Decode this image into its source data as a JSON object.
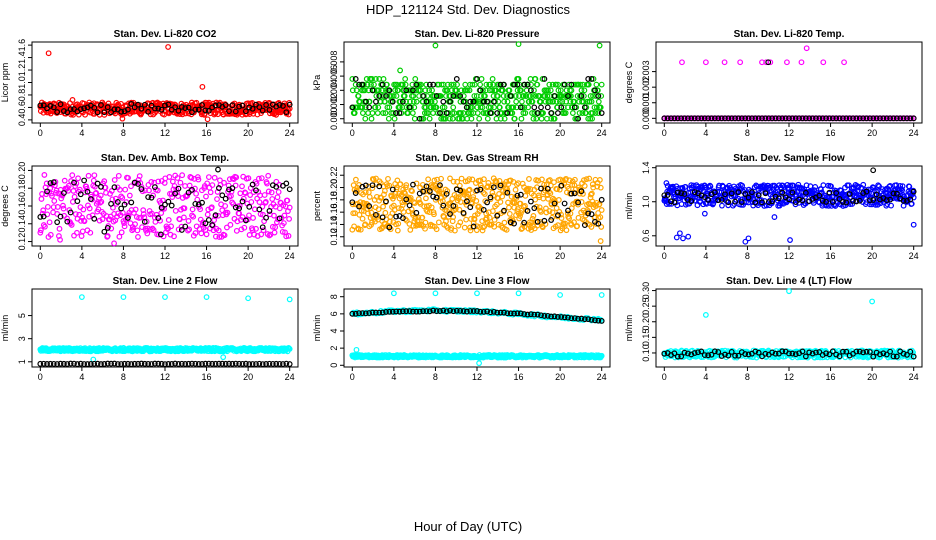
{
  "figure": {
    "title": "HDP_121124  Std. Dev. Diagnostics",
    "xlabel": "Hour of Day (UTC)"
  },
  "chart_data": [
    {
      "type": "scatter",
      "title": "Stan. Dev. Li-820 CO2",
      "ylabel": "Licor ppm",
      "xlim": [
        -0.8,
        24.8
      ],
      "ylim": [
        0.35,
        1.65
      ],
      "xticks": [
        "0",
        "4",
        "8",
        "12",
        "16",
        "20",
        "24"
      ],
      "yticks": [
        "0.4",
        "0.6",
        "0.8",
        "1.0",
        "1.2",
        "1.4",
        "1.6"
      ],
      "colors": {
        "main": "#ff0000",
        "overlay": "#000000"
      },
      "series": [
        {
          "color": "#ff0000",
          "band": [
            0.48,
            0.68
          ],
          "n": 480,
          "outliers": [
            [
              0.8,
              1.47
            ],
            [
              12.3,
              1.57
            ],
            [
              15.6,
              0.93
            ],
            [
              16.1,
              0.41
            ],
            [
              7.9,
              0.42
            ],
            [
              3.1,
              0.72
            ]
          ]
        },
        {
          "color": "#000000",
          "band": [
            0.52,
            0.66
          ],
          "n": 75
        }
      ]
    },
    {
      "type": "scatter",
      "title": "Stan. Dev. Li-820 Pressure",
      "ylabel": "kPa",
      "xlim": [
        -0.8,
        24.8
      ],
      "ylim": [
        -0.0006,
        0.0108
      ],
      "xticks": [
        "0",
        "4",
        "8",
        "12",
        "16",
        "20",
        "24"
      ],
      "yticks": [
        "0.000",
        "0.002",
        "0.004",
        "0.006",
        "0.008"
      ],
      "colors": {
        "main": "#00cc00",
        "overlay": "#000000"
      },
      "series": [
        {
          "color": "#00cc00",
          "band": [
            0.0,
            0.0055
          ],
          "n": 520,
          "quantize": 0.0008,
          "outliers": [
            [
              8,
              0.0103
            ],
            [
              16,
              0.0105
            ],
            [
              23.8,
              0.0103
            ],
            [
              4.6,
              0.0068
            ]
          ]
        },
        {
          "color": "#000000",
          "band": [
            0.0,
            0.0055
          ],
          "n": 75,
          "quantize": 0.0008
        }
      ]
    },
    {
      "type": "scatter",
      "title": "Stan. Dev. Li-820 Temp.",
      "ylabel": "degrees C",
      "xlim": [
        -0.8,
        24.8
      ],
      "ylim": [
        -0.0003,
        0.0049
      ],
      "xticks": [
        "0",
        "4",
        "8",
        "12",
        "16",
        "20",
        "24"
      ],
      "yticks": [
        "0.000",
        "0.001",
        "0.002",
        "0.003"
      ],
      "colors": {
        "main": "#ff00ff",
        "overlay": "#000000"
      },
      "series": [
        {
          "color": "#ff00ff",
          "band": [
            0.0,
            0.0
          ],
          "n": 130,
          "outliers": [
            [
              0,
              0
            ],
            [
              1.7,
              0.0036
            ],
            [
              4,
              0.0036
            ],
            [
              5.8,
              0.0036
            ],
            [
              7.3,
              0.0036
            ],
            [
              9.4,
              0.0036
            ],
            [
              9.8,
              0.0036
            ],
            [
              10.2,
              0.0036
            ],
            [
              11.8,
              0.0036
            ],
            [
              13.2,
              0.0036
            ],
            [
              13.7,
              0.0045
            ],
            [
              15.3,
              0.0036
            ],
            [
              17.3,
              0.0036
            ],
            [
              10.3,
              0.0
            ]
          ]
        },
        {
          "color": "#000000",
          "band": [
            0.0,
            0.0
          ],
          "n": 75,
          "outliers": [
            [
              10,
              0.0036
            ]
          ]
        }
      ]
    },
    {
      "type": "scatter",
      "title": "Stan. Dev. Amb. Box Temp.",
      "ylabel": "degrees C",
      "xlim": [
        -0.8,
        24.8
      ],
      "ylim": [
        0.115,
        0.205
      ],
      "xticks": [
        "0",
        "4",
        "8",
        "12",
        "16",
        "20",
        "24"
      ],
      "yticks": [
        "0.12",
        "0.14",
        "0.16",
        "0.18",
        "0.20"
      ],
      "colors": {
        "main": "#ff00ff",
        "overlay": "#000000"
      },
      "series": [
        {
          "color": "#ff00ff",
          "band": [
            0.125,
            0.195
          ],
          "n": 430,
          "outliers": [
            [
              1.9,
              0.122
            ],
            [
              7.1,
              0.118
            ]
          ]
        },
        {
          "color": "#000000",
          "band": [
            0.13,
            0.19
          ],
          "n": 75,
          "outliers": [
            [
              17.1,
              0.201
            ],
            [
              11.6,
              0.128
            ]
          ]
        }
      ]
    },
    {
      "type": "scatter",
      "title": "Stan. Dev. Gas Stream RH",
      "ylabel": "percent",
      "xlim": [
        -0.8,
        24.8
      ],
      "ylim": [
        0.105,
        0.235
      ],
      "xticks": [
        "0",
        "4",
        "8",
        "12",
        "16",
        "20",
        "24"
      ],
      "yticks": [
        "0.12",
        "0.14",
        "0.16",
        "0.18",
        "0.20",
        "0.22"
      ],
      "colors": {
        "main": "#ffa500",
        "overlay": "#000000"
      },
      "series": [
        {
          "color": "#ffa500",
          "band": [
            0.13,
            0.215
          ],
          "n": 560,
          "outliers": [
            [
              23.9,
              0.113
            ]
          ]
        },
        {
          "color": "#000000",
          "band": [
            0.135,
            0.205
          ],
          "n": 75
        }
      ]
    },
    {
      "type": "scatter",
      "title": "Stan. Dev. Sample Flow",
      "ylabel": "ml/min",
      "xlim": [
        -0.8,
        24.8
      ],
      "ylim": [
        0.48,
        1.42
      ],
      "xticks": [
        "0",
        "4",
        "8",
        "12",
        "16",
        "20",
        "24"
      ],
      "yticks": [
        "0.6",
        "1.0",
        "1.4"
      ],
      "colors": {
        "main": "#0000ff",
        "overlay": "#000000"
      },
      "series": [
        {
          "color": "#0000ff",
          "band": [
            0.95,
            1.2
          ],
          "n": 520,
          "outliers": [
            [
              1.2,
              0.58
            ],
            [
              1.5,
              0.63
            ],
            [
              1.8,
              0.57
            ],
            [
              2.3,
              0.59
            ],
            [
              7.8,
              0.53
            ],
            [
              8.1,
              0.57
            ],
            [
              12.1,
              0.55
            ],
            [
              0.2,
              1.22
            ],
            [
              24,
              0.73
            ],
            [
              10.6,
              0.82
            ],
            [
              3.9,
              0.86
            ]
          ]
        },
        {
          "color": "#000000",
          "band": [
            0.99,
            1.12
          ],
          "n": 75,
          "outliers": [
            [
              20.1,
              1.37
            ]
          ]
        }
      ]
    },
    {
      "type": "scatter",
      "title": "Stan. Dev. Line 2 Flow",
      "ylabel": "ml/min",
      "xlim": [
        -0.8,
        24.8
      ],
      "ylim": [
        0.55,
        7.3
      ],
      "xticks": [
        "0",
        "4",
        "8",
        "12",
        "16",
        "20",
        "24"
      ],
      "yticks": [
        "1",
        "3",
        "5"
      ],
      "colors": {
        "main": "#00ffff",
        "overlay": "#000000"
      },
      "series": [
        {
          "color": "#00ffff",
          "band": [
            1.9,
            2.2
          ],
          "n": 480,
          "outliers": [
            [
              4,
              6.6
            ],
            [
              8,
              6.6
            ],
            [
              12,
              6.6
            ],
            [
              16,
              6.6
            ],
            [
              20,
              6.5
            ],
            [
              24,
              6.4
            ],
            [
              5.1,
              1.2
            ],
            [
              17.6,
              1.4
            ]
          ]
        },
        {
          "color": "#000000",
          "band": [
            0.8,
            0.85
          ],
          "n": 75
        }
      ]
    },
    {
      "type": "scatter",
      "title": "Stan. Dev. Line 3 Flow",
      "ylabel": "ml/min",
      "xlim": [
        -0.8,
        24.8
      ],
      "ylim": [
        -0.2,
        8.9
      ],
      "xticks": [
        "0",
        "4",
        "8",
        "12",
        "16",
        "20",
        "24"
      ],
      "yticks": [
        "0",
        "2",
        "4",
        "6",
        "8"
      ],
      "colors": {
        "main": "#00ffff",
        "overlay": "#000000"
      },
      "series": [
        {
          "color": "#00ffff",
          "band": [
            0.9,
            1.2
          ],
          "n": 460,
          "outliers": [
            [
              4,
              8.4
            ],
            [
              8,
              8.4
            ],
            [
              12,
              8.4
            ],
            [
              16,
              8.4
            ],
            [
              20,
              8.2
            ],
            [
              24,
              8.2
            ],
            [
              0.4,
              1.8
            ],
            [
              12.2,
              0.25
            ]
          ]
        },
        {
          "color": "#00ffff",
          "curve": [
            [
              0,
              6.0
            ],
            [
              4,
              6.3
            ],
            [
              8,
              6.4
            ],
            [
              12,
              6.3
            ],
            [
              16,
              6.0
            ],
            [
              20,
              5.6
            ],
            [
              24,
              5.3
            ]
          ],
          "n": 220,
          "jitter": 0.15
        },
        {
          "color": "#000000",
          "curve": [
            [
              0,
              6.0
            ],
            [
              4,
              6.25
            ],
            [
              8,
              6.35
            ],
            [
              12,
              6.3
            ],
            [
              16,
              6.05
            ],
            [
              20,
              5.65
            ],
            [
              24,
              5.2
            ]
          ],
          "n": 75,
          "jitter": 0.05
        }
      ]
    },
    {
      "type": "scatter",
      "title": "Stan. Dev. Line 4 (LT) Flow",
      "ylabel": "ml/min",
      "xlim": [
        -0.8,
        24.8
      ],
      "ylim": [
        0.055,
        0.305
      ],
      "xticks": [
        "0",
        "4",
        "8",
        "12",
        "16",
        "20",
        "24"
      ],
      "yticks": [
        "0.10",
        "0.15",
        "0.20",
        "0.25",
        "0.30"
      ],
      "colors": {
        "main": "#00ffff",
        "overlay": "#000000"
      },
      "series": [
        {
          "color": "#00ffff",
          "band": [
            0.085,
            0.108
          ],
          "n": 420,
          "outliers": [
            [
              4,
              0.222
            ],
            [
              12,
              0.298
            ],
            [
              20,
              0.265
            ]
          ]
        },
        {
          "color": "#000000",
          "band": [
            0.088,
            0.106
          ],
          "n": 75
        }
      ]
    }
  ]
}
